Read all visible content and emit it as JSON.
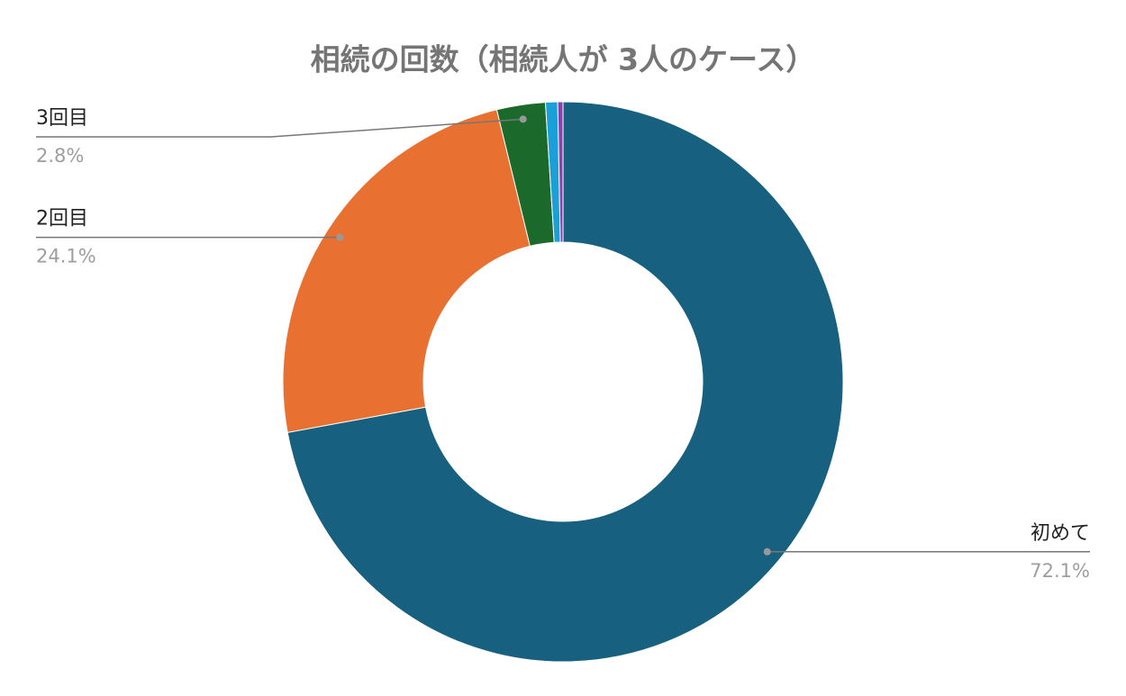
{
  "chart_data": {
    "type": "donut",
    "title": "相続の回数（相続人が 3人のケース）",
    "categories": [
      "初めて",
      "2回目",
      "3回目",
      null,
      null
    ],
    "values": [
      72.1,
      24.1,
      2.8,
      0.7,
      0.3
    ],
    "value_labels": [
      "72.1%",
      "24.1%",
      "2.8%",
      null,
      null
    ],
    "colors": [
      "#17607f",
      "#e87132",
      "#1b6a2b",
      "#1a9fd8",
      "#8e3fae"
    ]
  }
}
